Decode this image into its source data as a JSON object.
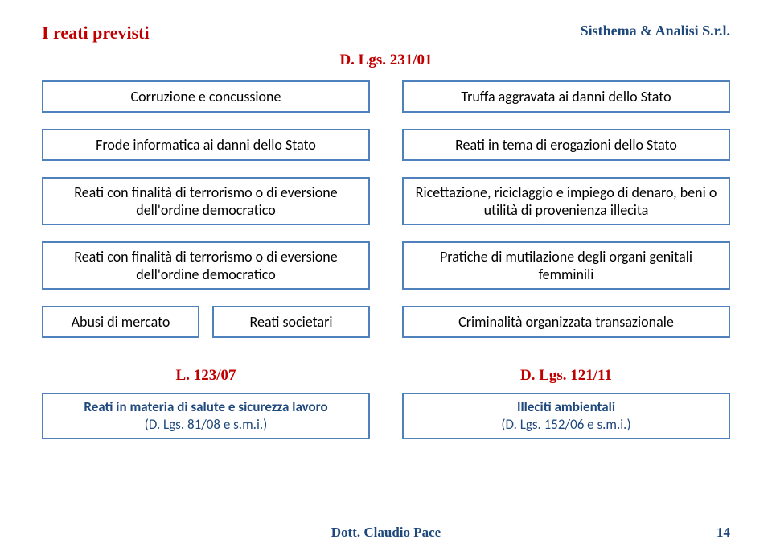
{
  "colors": {
    "red": "#c00000",
    "blue": "#1f497d",
    "box_border": "#4f81bd",
    "box_text": "#000000"
  },
  "header": {
    "left": "I reati previsti",
    "right": "Sisthema & Analisi S.r.l."
  },
  "law1": {
    "label": "D. Lgs. 231/01"
  },
  "rows": [
    {
      "left": "Corruzione e concussione",
      "right": "Truffa aggravata ai danni dello Stato",
      "h": "h1"
    },
    {
      "left": "Frode informatica ai danni dello Stato",
      "right": "Reati in tema di erogazioni dello Stato",
      "h": "h1"
    },
    {
      "left": "Reati con finalità di terrorismo o di eversione dell'ordine democratico",
      "right": "Ricettazione, riciclaggio e impiego di denaro, beni o utilità di provenienza illecita",
      "h": "h2"
    },
    {
      "left": "Reati con finalità di terrorismo o di eversione dell'ordine democratico",
      "right": "Pratiche di mutilazione degli organi genitali femminili",
      "h": "h2"
    }
  ],
  "split_row": {
    "left_a": "Abusi di mercato",
    "left_b": "Reati societari",
    "right": "Criminalità organizzata transazionale"
  },
  "bottom": {
    "left": {
      "label": "L. 123/07",
      "line1": "Reati in materia di salute e sicurezza lavoro",
      "line2": "(D. Lgs. 81/08 e s.m.i.)"
    },
    "right": {
      "label": "D. Lgs. 121/11",
      "line1": "Illeciti ambientali",
      "line2": "(D. Lgs. 152/06 e s.m.i.)"
    }
  },
  "footer": {
    "author": "Dott. Claudio Pace",
    "page": "14"
  }
}
